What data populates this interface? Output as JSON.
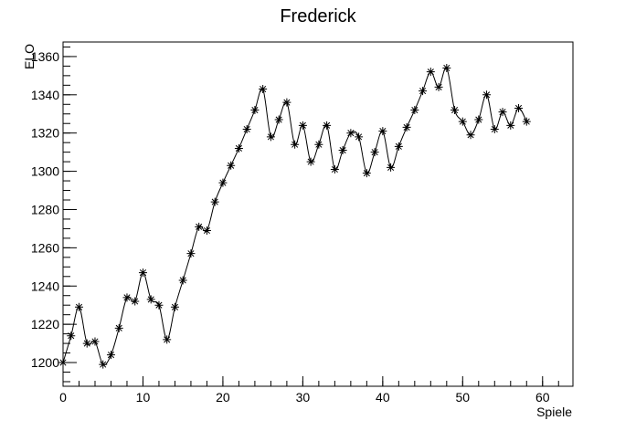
{
  "chart_data": {
    "type": "line",
    "title": "Frederick",
    "x_label": "Spiele",
    "y_label": "ELO",
    "x": [
      0,
      1,
      2,
      3,
      4,
      5,
      6,
      7,
      8,
      9,
      10,
      11,
      12,
      13,
      14,
      15,
      16,
      17,
      18,
      19,
      20,
      21,
      22,
      23,
      24,
      25,
      26,
      27,
      28,
      29,
      30,
      31,
      32,
      33,
      34,
      35,
      36,
      37,
      38,
      39,
      40,
      41,
      42,
      43,
      44,
      45,
      46,
      47,
      48,
      49,
      50,
      51,
      52,
      53,
      54,
      55,
      56,
      57,
      58
    ],
    "series": [
      {
        "name": "Frederick",
        "color": "#000000",
        "marker": "star",
        "values": [
          1200,
          1214,
          1229,
          1210,
          1211,
          1199,
          1204,
          1218,
          1234,
          1232,
          1247,
          1233,
          1230,
          1212,
          1229,
          1243,
          1257,
          1271,
          1269,
          1284,
          1294,
          1303,
          1312,
          1322,
          1332,
          1343,
          1318,
          1327,
          1336,
          1314,
          1324,
          1305,
          1314,
          1324,
          1301,
          1311,
          1320,
          1318,
          1299,
          1310,
          1321,
          1302,
          1313,
          1323,
          1332,
          1342,
          1352,
          1344,
          1354,
          1332,
          1326,
          1319,
          1327,
          1340,
          1322,
          1331,
          1324,
          1333,
          1326
        ]
      }
    ],
    "xlim": [
      0,
      63.8
    ],
    "xticks": [
      0,
      10,
      20,
      30,
      40,
      50,
      60
    ],
    "ylim": [
      1187.6,
      1367.6
    ],
    "yticks": [
      1200,
      1220,
      1240,
      1260,
      1280,
      1300,
      1320,
      1340,
      1360
    ]
  }
}
